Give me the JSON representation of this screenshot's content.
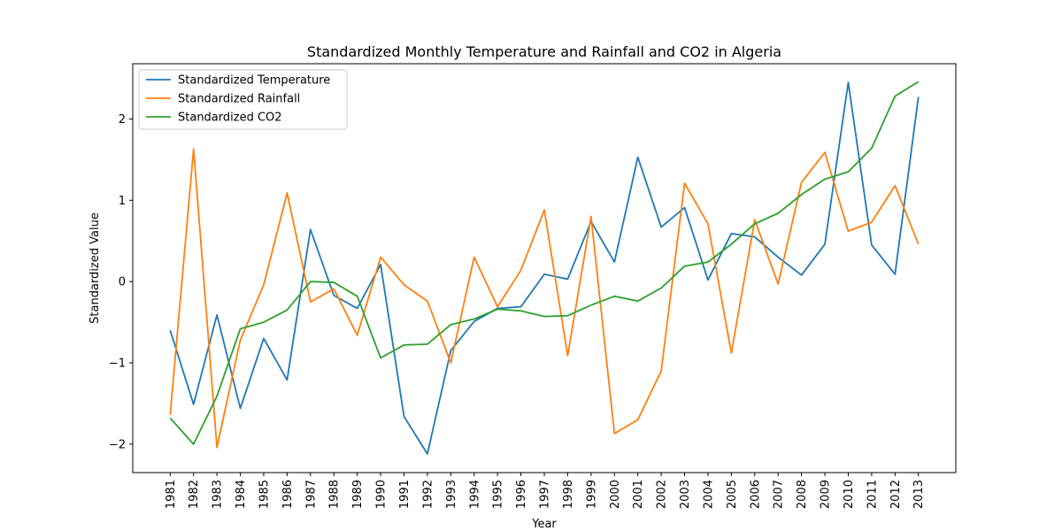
{
  "chart_data": {
    "type": "line",
    "title": "Standardized Monthly Temperature and Rainfall and CO2 in Algeria",
    "xlabel": "Year",
    "ylabel": "Standardized Value",
    "x": [
      "1981",
      "1982",
      "1983",
      "1984",
      "1985",
      "1986",
      "1987",
      "1988",
      "1989",
      "1990",
      "1991",
      "1992",
      "1993",
      "1994",
      "1995",
      "1996",
      "1997",
      "1998",
      "1999",
      "2000",
      "2001",
      "2002",
      "2003",
      "2004",
      "2005",
      "2006",
      "2007",
      "2008",
      "2009",
      "2010",
      "2011",
      "2012",
      "2013"
    ],
    "yticks": [
      -2,
      -1,
      0,
      1,
      2
    ],
    "ytick_labels": [
      "−2",
      "−1",
      "0",
      "1",
      "2"
    ],
    "ylim": [
      -2.35,
      2.68
    ],
    "grid": false,
    "legend_position": "top-left",
    "series": [
      {
        "name": "Standardized Temperature",
        "color": "#1f77b4",
        "values": [
          -0.6,
          -1.51,
          -0.41,
          -1.56,
          -0.7,
          -1.21,
          0.64,
          -0.17,
          -0.33,
          0.21,
          -1.66,
          -2.12,
          -0.85,
          -0.49,
          -0.33,
          -0.31,
          0.09,
          0.03,
          0.74,
          0.24,
          1.53,
          0.67,
          0.91,
          0.02,
          0.59,
          0.55,
          0.3,
          0.08,
          0.46,
          2.45,
          0.45,
          0.09,
          2.27
        ]
      },
      {
        "name": "Standardized Rainfall",
        "color": "#ff7f0e",
        "values": [
          -1.64,
          1.63,
          -2.04,
          -0.72,
          -0.04,
          1.09,
          -0.25,
          -0.09,
          -0.66,
          0.3,
          -0.04,
          -0.24,
          -1.0,
          0.3,
          -0.31,
          0.14,
          0.88,
          -0.91,
          0.8,
          -1.87,
          -1.7,
          -1.1,
          1.21,
          0.71,
          -0.88,
          0.76,
          -0.03,
          1.22,
          1.59,
          0.62,
          0.73,
          1.18,
          0.46
        ]
      },
      {
        "name": "Standardized CO2",
        "color": "#2ca02c",
        "values": [
          -1.68,
          -2.0,
          -1.41,
          -0.58,
          -0.5,
          -0.35,
          0.0,
          -0.01,
          -0.18,
          -0.94,
          -0.78,
          -0.77,
          -0.53,
          -0.46,
          -0.34,
          -0.36,
          -0.43,
          -0.42,
          -0.29,
          -0.18,
          -0.24,
          -0.08,
          0.19,
          0.24,
          0.46,
          0.71,
          0.84,
          1.07,
          1.26,
          1.35,
          1.64,
          2.28,
          2.46
        ]
      }
    ]
  }
}
